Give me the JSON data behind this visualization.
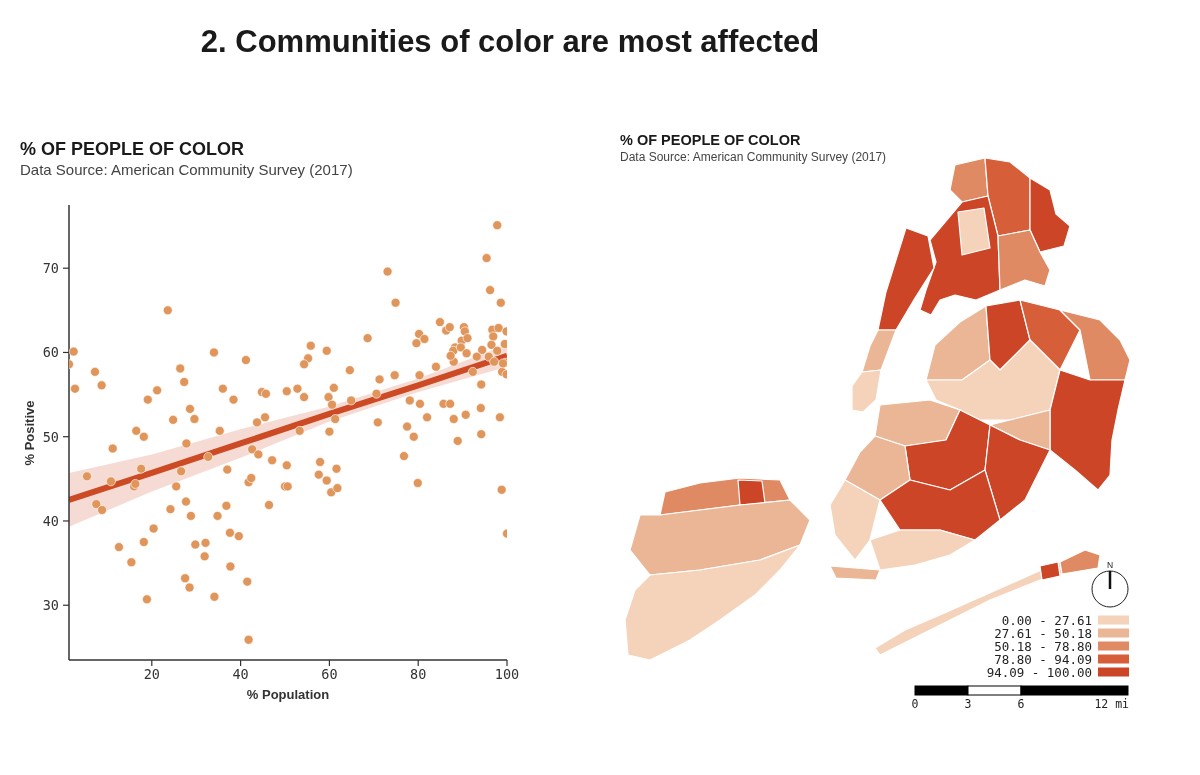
{
  "chart_data": [
    {
      "type": "other",
      "title": "2. Communities of color are most affected"
    },
    {
      "type": "scatter",
      "title": "% OF PEOPLE OF COLOR",
      "subtitle": "Data Source: American Community Survey (2017)",
      "xlabel": "% Population",
      "ylabel": "% Positive",
      "xlim": [
        1.35,
        100
      ],
      "ylim": [
        23.5,
        77.5
      ],
      "xticks": [
        20,
        40,
        60,
        80,
        100
      ],
      "yticks": [
        30,
        40,
        50,
        60,
        70
      ],
      "series": [
        {
          "type": "scatter",
          "color": "#e0955b",
          "marker": "circle",
          "x": [
            1.35,
            2.4,
            2.7,
            7.2,
            8.7,
            23.6,
            16.5,
            18.2,
            19.1,
            21.2,
            24.8,
            26.4,
            27.3,
            28.6,
            29.6,
            27.8,
            34.0,
            35.3,
            36.0,
            38.4,
            41.2,
            43.7,
            45.5,
            44.8,
            45.7,
            50.4,
            97.8,
            95.4,
            96.2,
            98.6,
            73.1,
            74.9,
            84.9,
            86.3,
            87.1,
            80.2,
            81.4,
            79.6,
            68.6,
            55.8,
            59.4,
            55.2,
            54.3,
            64.6,
            71.3,
            74.7,
            84.0,
            80.3,
            52.8,
            54.3,
            61.0,
            59.8,
            60.6,
            64.9,
            70.6,
            61.3,
            60.0,
            53.3,
            70.9,
            77.5,
            79.0,
            78.1,
            80.4,
            82.0,
            85.7,
            87.2,
            88.0,
            90.7,
            88.9,
            94.1,
            94.2,
            94.2,
            98.4,
            90.3,
            90.5,
            89.8,
            91.1,
            88.3,
            87.9,
            89.6,
            88.0,
            87.3,
            90.9,
            92.3,
            94.4,
            93.2,
            95.9,
            96.7,
            98.1,
            96.9,
            96.5,
            97.8,
            99.9,
            99.5,
            99.8,
            98.9,
            99.9,
            99.1,
            97.1,
            5.4,
            7.5,
            8.8,
            10.8,
            11.2,
            12.6,
            15.4,
            16.0,
            16.3,
            17.6,
            18.2,
            18.9,
            20.4,
            24.2,
            25.5,
            26.6,
            27.5,
            27.7,
            28.5,
            28.8,
            29.8,
            32.1,
            31.9,
            32.7,
            34.1,
            34.8,
            37.0,
            36.8,
            37.6,
            37.7,
            39.6,
            41.5,
            41.8,
            41.8,
            42.4,
            42.6,
            44.0,
            47.1,
            46.4,
            50.4,
            50.0,
            50.6,
            57.9,
            57.6,
            59.4,
            61.6,
            60.4,
            61.8,
            76.8,
            79.9,
            98.8,
            100
          ],
          "values": [
            58.6,
            60.1,
            55.7,
            57.7,
            56.1,
            65.0,
            50.7,
            50.0,
            54.4,
            55.5,
            52.0,
            58.1,
            56.5,
            53.3,
            52.1,
            49.2,
            60.0,
            50.7,
            55.7,
            54.4,
            59.1,
            51.7,
            52.3,
            55.3,
            55.1,
            55.4,
            75.1,
            71.2,
            67.4,
            65.9,
            69.6,
            65.9,
            63.6,
            62.6,
            63.0,
            62.2,
            61.6,
            61.1,
            61.7,
            60.8,
            60.2,
            59.3,
            58.6,
            57.9,
            56.8,
            57.3,
            58.3,
            57.3,
            55.7,
            54.7,
            55.8,
            54.7,
            53.8,
            54.3,
            55.1,
            52.1,
            50.6,
            50.7,
            51.7,
            51.2,
            50.0,
            54.3,
            53.9,
            52.3,
            53.9,
            53.9,
            52.1,
            52.6,
            49.5,
            53.4,
            56.2,
            50.3,
            52.3,
            63.0,
            62.5,
            61.4,
            61.7,
            60.6,
            60.2,
            60.6,
            58.9,
            59.6,
            59.9,
            57.7,
            60.3,
            59.5,
            59.5,
            62.7,
            62.9,
            61.9,
            60.9,
            60.2,
            62.5,
            61.0,
            58.8,
            57.7,
            57.4,
            58.7,
            58.9,
            45.3,
            42.0,
            41.3,
            44.7,
            48.6,
            36.9,
            35.1,
            44.1,
            44.4,
            46.2,
            37.5,
            30.7,
            39.1,
            41.4,
            44.1,
            45.9,
            33.2,
            42.3,
            32.1,
            40.6,
            37.2,
            37.4,
            35.8,
            47.6,
            31.0,
            40.6,
            46.1,
            41.8,
            38.6,
            34.6,
            38.2,
            32.8,
            25.9,
            44.6,
            45.1,
            48.5,
            47.9,
            47.2,
            41.9,
            46.6,
            44.1,
            44.1,
            47.0,
            45.5,
            44.8,
            46.2,
            43.4,
            43.9,
            47.7,
            44.5,
            43.7,
            38.5
          ]
        },
        {
          "type": "line",
          "color": "#cc4a24",
          "x": [
            1.35,
            20,
            40,
            60,
            80,
            100
          ],
          "values": [
            42.5,
            45.7,
            49.2,
            52.7,
            56.1,
            59.6
          ],
          "lower": [
            39.3,
            43.5,
            47.5,
            51.8,
            55.3,
            58.3
          ],
          "upper": [
            45.7,
            47.9,
            50.9,
            53.6,
            56.9,
            60.9
          ]
        }
      ]
    },
    {
      "type": "other",
      "title": "% OF PEOPLE OF COLOR",
      "subtitle": "Data Source: American Community Survey (2017)",
      "categories": [
        "0.00 - 27.61",
        "27.61 - 50.18",
        "50.18 - 78.80",
        "78.80 - 94.09",
        "94.09 - 100.00"
      ],
      "colors": [
        "#f4d3ba",
        "#eab695",
        "#e08a64",
        "#d65f39",
        "#cc4526"
      ],
      "annotations": [
        "N",
        "0",
        "3",
        "6",
        "12 mi"
      ]
    }
  ]
}
